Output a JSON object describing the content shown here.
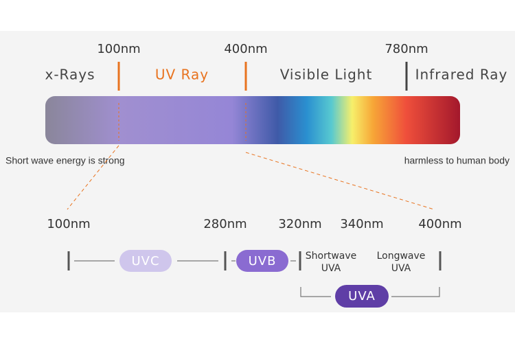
{
  "scale": {
    "ticks": [
      "100nm",
      "400nm",
      "780nm"
    ],
    "regions": [
      "x-Rays",
      "UV Ray",
      "Visible Light",
      "Infrared Ray"
    ],
    "captions": [
      "Short wave energy is strong",
      "harmless to human body"
    ]
  },
  "uv": {
    "ticks": [
      "100nm",
      "280nm",
      "320nm",
      "340nm",
      "400nm"
    ],
    "bands": [
      {
        "label": "UVC"
      },
      {
        "label": "UVB"
      },
      {
        "label": "Shortwave",
        "sub": "UVA"
      },
      {
        "label": "Longwave",
        "sub": "UVA"
      }
    ],
    "group": "UVA"
  }
}
